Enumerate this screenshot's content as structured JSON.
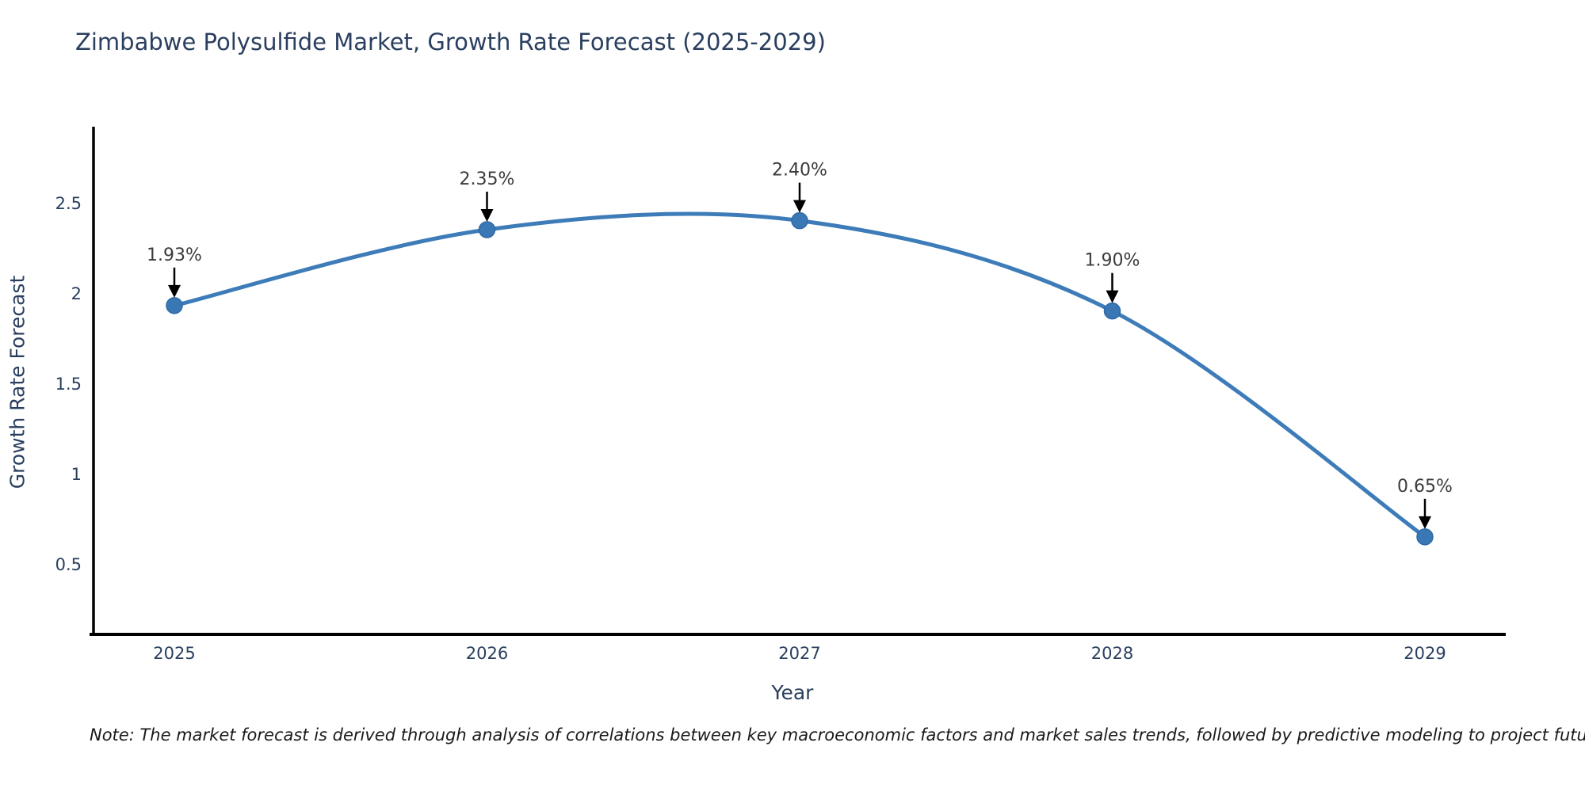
{
  "title": "Zimbabwe Polysulfide Market, Growth Rate Forecast (2025-2029)",
  "footnote": "Note: The market forecast is derived through analysis of correlations between key macroeconomic factors and market sales trends, followed by predictive modeling to project future sales",
  "chart_data": {
    "type": "line",
    "line_shape": "spline",
    "title": "Zimbabwe Polysulfide Market, Growth Rate Forecast (2025-2029)",
    "xlabel": "Year",
    "ylabel": "Growth Rate Forecast",
    "x": [
      "2025",
      "2026",
      "2027",
      "2028",
      "2029"
    ],
    "series": [
      {
        "name": "Growth Rate Forecast",
        "values": [
          1.93,
          2.35,
          2.4,
          1.9,
          0.65
        ]
      }
    ],
    "point_labels": [
      "1.93%",
      "2.35%",
      "2.40%",
      "1.90%",
      "0.65%"
    ],
    "ylim": [
      0.11,
      2.92
    ],
    "yticks": [
      0.5,
      1,
      1.5,
      2,
      2.5
    ],
    "grid": false,
    "legend": "none",
    "colors": {
      "line": "#3d7cb8",
      "marker": "#3a78b5",
      "marker_edge": "#2f6aa8",
      "axis": "#000000",
      "tick_text": "#2a3f5f",
      "title_text": "#2a3f5f",
      "annotation_text": "#3b3b3b",
      "annotation_arrow": "#000000",
      "background": "#ffffff"
    }
  }
}
